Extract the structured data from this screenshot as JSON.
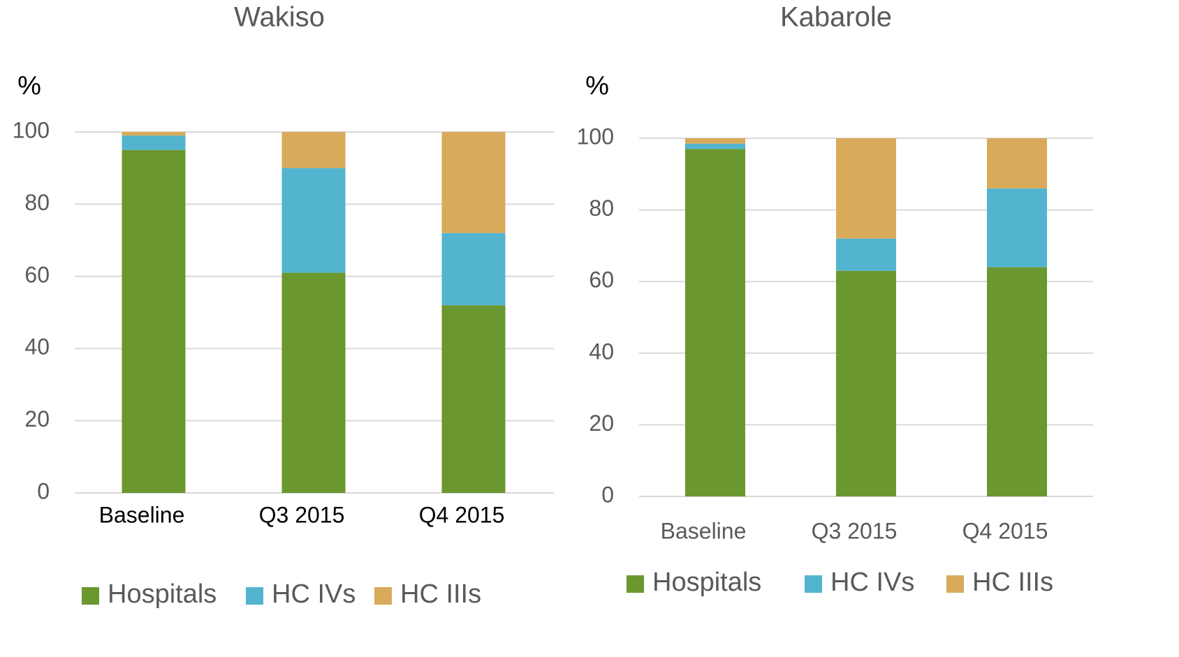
{
  "chart_data": [
    {
      "type": "bar",
      "stacked": true,
      "title": "Wakiso",
      "ylabel": "%",
      "categories": [
        "Baseline",
        "Q3 2015",
        "Q4 2015"
      ],
      "series": [
        {
          "name": "Hospitals",
          "color": "#6a972f",
          "values": [
            95,
            61,
            52
          ]
        },
        {
          "name": "HC IVs",
          "color": "#53b4cf",
          "values": [
            4,
            29,
            20
          ]
        },
        {
          "name": "HC IIIs",
          "color": "#d9aa5a",
          "values": [
            1,
            10,
            28
          ]
        }
      ],
      "ylim": [
        0,
        100
      ],
      "yticks": [
        0,
        20,
        40,
        60,
        80,
        100
      ],
      "grid": true,
      "legend": "bottom"
    },
    {
      "type": "bar",
      "stacked": true,
      "title": "Kabarole",
      "ylabel": "%",
      "categories": [
        "Baseline",
        "Q3 2015",
        "Q4 2015"
      ],
      "series": [
        {
          "name": "Hospitals",
          "color": "#6a972f",
          "values": [
            97,
            63,
            64
          ]
        },
        {
          "name": "HC IVs",
          "color": "#53b4cf",
          "values": [
            1.5,
            9,
            22
          ]
        },
        {
          "name": "HC IIIs",
          "color": "#d9aa5a",
          "values": [
            1.5,
            28,
            14
          ]
        }
      ],
      "ylim": [
        0,
        100
      ],
      "yticks": [
        0,
        20,
        40,
        60,
        80,
        100
      ],
      "grid": true,
      "legend": "bottom"
    }
  ]
}
